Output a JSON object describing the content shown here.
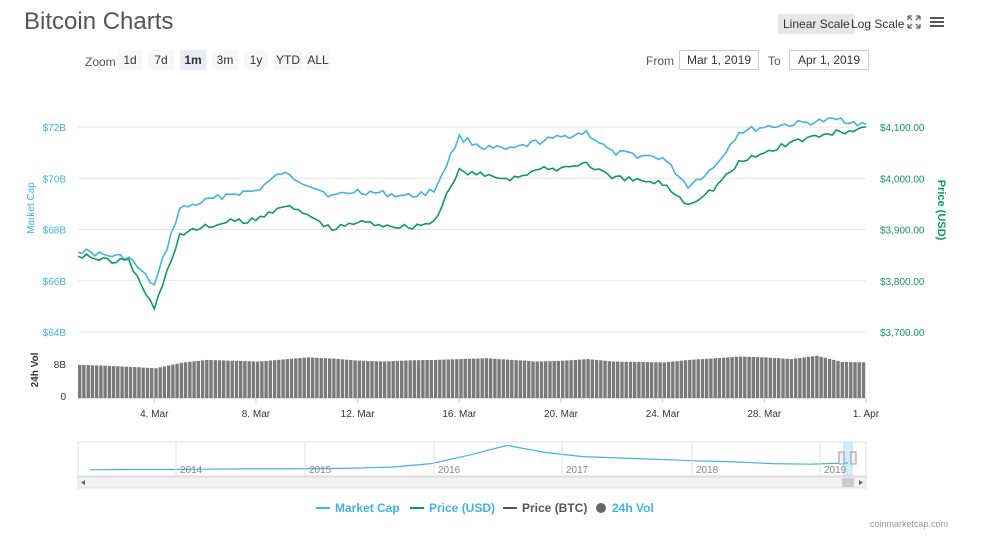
{
  "title": "Bitcoin Charts",
  "scale_buttons": {
    "linear": "Linear Scale",
    "log": "Log Scale"
  },
  "icons": {
    "fullscreen": "expand-icon",
    "menu": "hamburger-menu-icon"
  },
  "zoom": {
    "label": "Zoom",
    "buttons": [
      "1d",
      "7d",
      "1m",
      "3m",
      "1y",
      "YTD",
      "ALL"
    ],
    "active": "1m"
  },
  "range": {
    "from_label": "From",
    "from_value": "Mar 1, 2019",
    "to_label": "To",
    "to_value": "Apr 1, 2019"
  },
  "legend": {
    "market_cap": "Market Cap",
    "price_usd": "Price (USD)",
    "price_btc": "Price (BTC)",
    "vol": "24h Vol"
  },
  "credit": "coinmarketcap.com",
  "chart_data": {
    "type": "line",
    "colors": {
      "market_cap": "#43b2e5",
      "price_usd": "#0f9a5c",
      "volume": "#7a7a7a",
      "navigator": "#43b2e5"
    },
    "left_axis": {
      "title": "Market Cap",
      "ticks": [
        "$72B",
        "$70B",
        "$68B",
        "$66B",
        "$64B"
      ]
    },
    "right_axis": {
      "title": "Price (USD)",
      "ticks": [
        "$4,100.00",
        "$4,000.00",
        "$3,900.00",
        "$3,800.00",
        "$3,700.00"
      ],
      "ylim": [
        3700,
        4100
      ]
    },
    "volume_axis": {
      "title": "24h Vol",
      "ticks": [
        "8B",
        "0"
      ]
    },
    "x_ticks": [
      "4. Mar",
      "8. Mar",
      "12. Mar",
      "16. Mar",
      "20. Mar",
      "24. Mar",
      "28. Mar",
      "1. Apr"
    ],
    "x": [
      "Mar 1",
      "Mar 2",
      "Mar 3",
      "Mar 4",
      "Mar 5",
      "Mar 6",
      "Mar 7",
      "Mar 8",
      "Mar 9",
      "Mar 10",
      "Mar 11",
      "Mar 12",
      "Mar 13",
      "Mar 14",
      "Mar 15",
      "Mar 16",
      "Mar 17",
      "Mar 18",
      "Mar 19",
      "Mar 20",
      "Mar 21",
      "Mar 22",
      "Mar 23",
      "Mar 24",
      "Mar 25",
      "Mar 26",
      "Mar 27",
      "Mar 28",
      "Mar 29",
      "Mar 30",
      "Mar 31",
      "Apr 1"
    ],
    "series": [
      {
        "name": "Market Cap",
        "axis": "left",
        "values": [
          67.2,
          67.0,
          66.9,
          65.8,
          68.8,
          69.1,
          69.4,
          69.5,
          70.2,
          69.8,
          69.3,
          69.5,
          69.4,
          69.3,
          69.5,
          71.6,
          71.2,
          71.1,
          71.4,
          71.6,
          71.8,
          71.0,
          70.9,
          70.8,
          69.7,
          70.4,
          71.8,
          72.0,
          72.1,
          72.2,
          72.3,
          72.1
        ]
      },
      {
        "name": "Price (USD)",
        "values": [
          3852,
          3840,
          3838,
          3745,
          3890,
          3905,
          3915,
          3918,
          3948,
          3930,
          3900,
          3915,
          3910,
          3905,
          3915,
          4015,
          4005,
          4000,
          4015,
          4020,
          4030,
          4000,
          3996,
          3990,
          3950,
          3980,
          4030,
          4050,
          4070,
          4082,
          4090,
          4100
        ]
      },
      {
        "name": "24h Vol",
        "axis": "volume",
        "values": [
          8.0,
          7.8,
          7.5,
          7.2,
          8.5,
          9.2,
          9.0,
          8.8,
          9.3,
          9.8,
          9.5,
          9.0,
          8.8,
          9.1,
          9.2,
          9.4,
          9.6,
          9.2,
          8.8,
          9.0,
          9.4,
          8.8,
          8.7,
          8.6,
          9.2,
          9.6,
          10.0,
          9.8,
          9.4,
          10.2,
          8.7,
          8.6
        ]
      }
    ],
    "navigator": {
      "labels": [
        "2014",
        "2015",
        "2016",
        "2017",
        "2018",
        "2019"
      ],
      "values": [
        8,
        9,
        9,
        10,
        11,
        11,
        12,
        14,
        18,
        30,
        60,
        95,
        70,
        55,
        50,
        45,
        40,
        36,
        30,
        28,
        32
      ]
    }
  }
}
